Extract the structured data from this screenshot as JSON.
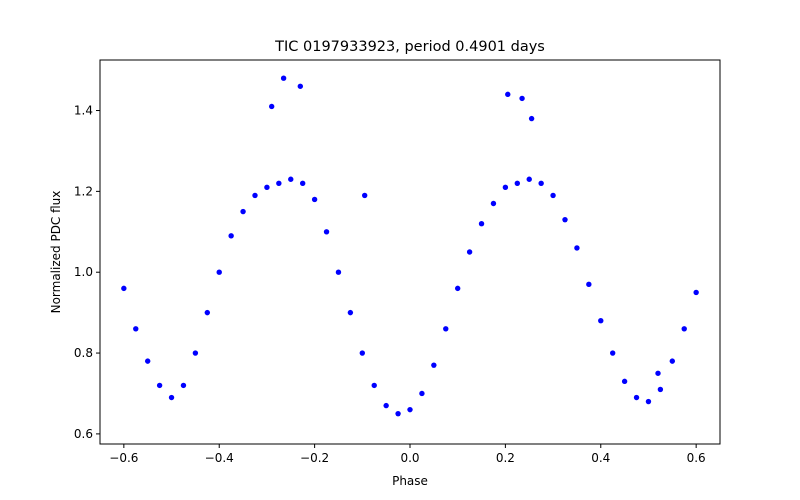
{
  "chart_data": {
    "type": "scatter",
    "title": "TIC 0197933923, period 0.4901 days",
    "xlabel": "Phase",
    "ylabel": "Normalized PDC flux",
    "xlim": [
      -0.65,
      0.65
    ],
    "ylim": [
      0.575,
      1.525
    ],
    "x_ticks": [
      -0.6,
      -0.4,
      -0.2,
      0.0,
      0.2,
      0.4,
      0.6
    ],
    "x_tick_labels": [
      "−0.6",
      "−0.4",
      "−0.2",
      "0.0",
      "0.2",
      "0.4",
      "0.6"
    ],
    "y_ticks": [
      0.6,
      0.8,
      1.0,
      1.2,
      1.4
    ],
    "y_tick_labels": [
      "0.6",
      "0.8",
      "1.0",
      "1.2",
      "1.4"
    ],
    "grid": false,
    "marker_color": "#0000ff",
    "series": [
      {
        "x": [
          -0.6,
          -0.575,
          -0.55,
          -0.525,
          -0.5,
          -0.475,
          -0.45,
          -0.425,
          -0.4,
          -0.375,
          -0.35,
          -0.325,
          -0.3,
          -0.275,
          -0.25,
          -0.225,
          -0.2,
          -0.175,
          -0.15,
          -0.125,
          -0.1,
          -0.075,
          -0.05,
          -0.025,
          0.0,
          0.025,
          0.05,
          0.075,
          0.1,
          0.125,
          0.15,
          0.175,
          0.2,
          0.225,
          0.25,
          0.275,
          0.3,
          0.325,
          0.35,
          0.375,
          0.4,
          0.425,
          0.45,
          0.475,
          0.5,
          0.525,
          0.55,
          0.575,
          0.6,
          -0.29,
          -0.265,
          -0.23,
          0.205,
          0.235,
          0.255,
          -0.095,
          0.52
        ],
        "y": [
          0.96,
          0.86,
          0.78,
          0.72,
          0.69,
          0.72,
          0.8,
          0.9,
          1.0,
          1.09,
          1.15,
          1.19,
          1.21,
          1.22,
          1.23,
          1.22,
          1.18,
          1.1,
          1.0,
          0.9,
          0.8,
          0.72,
          0.67,
          0.65,
          0.66,
          0.7,
          0.77,
          0.86,
          0.96,
          1.05,
          1.12,
          1.17,
          1.21,
          1.22,
          1.23,
          1.22,
          1.19,
          1.13,
          1.06,
          0.97,
          0.88,
          0.8,
          0.73,
          0.69,
          0.68,
          0.71,
          0.78,
          0.86,
          0.95,
          1.41,
          1.48,
          1.46,
          1.44,
          1.43,
          1.38,
          1.19,
          0.75
        ]
      }
    ]
  }
}
